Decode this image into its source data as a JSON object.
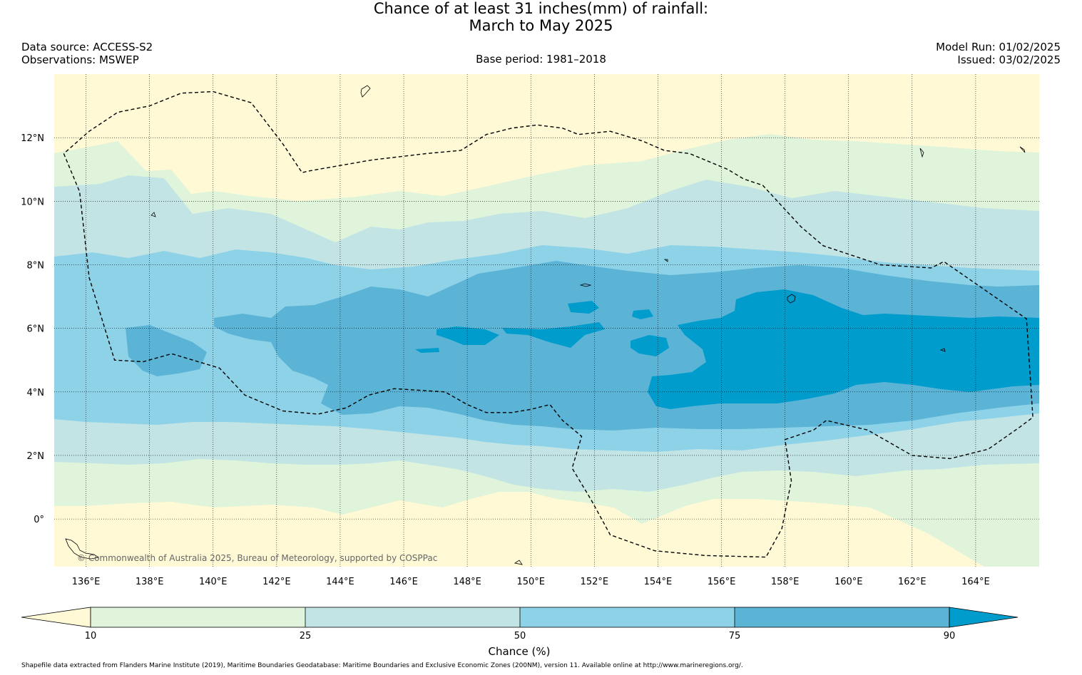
{
  "title": {
    "line1": "Chance of at least 31 inches(mm) of rainfall:",
    "line2": "March to May 2025"
  },
  "meta": {
    "data_source": "Data source: ACCESS-S2",
    "observations": "Observations: MSWEP",
    "base_period": "Base period: 1981–2018",
    "model_run": "Model Run: 01/02/2025",
    "issued": "Issued: 03/02/2025"
  },
  "map": {
    "lon_range": [
      135,
      166
    ],
    "lat_range": [
      -1.5,
      14
    ],
    "lon_ticks": [
      {
        "value": 136,
        "label": "136°E"
      },
      {
        "value": 138,
        "label": "138°E"
      },
      {
        "value": 140,
        "label": "140°E"
      },
      {
        "value": 142,
        "label": "142°E"
      },
      {
        "value": 144,
        "label": "144°E"
      },
      {
        "value": 146,
        "label": "146°E"
      },
      {
        "value": 148,
        "label": "148°E"
      },
      {
        "value": 150,
        "label": "150°E"
      },
      {
        "value": 152,
        "label": "152°E"
      },
      {
        "value": 154,
        "label": "154°E"
      },
      {
        "value": 156,
        "label": "156°E"
      },
      {
        "value": 158,
        "label": "158°E"
      },
      {
        "value": 160,
        "label": "160°E"
      },
      {
        "value": 162,
        "label": "162°E"
      },
      {
        "value": 164,
        "label": "164°E"
      }
    ],
    "lat_ticks": [
      {
        "value": 12,
        "label": "12°N"
      },
      {
        "value": 10,
        "label": "10°N"
      },
      {
        "value": 8,
        "label": "8°N"
      },
      {
        "value": 6,
        "label": "6°N"
      },
      {
        "value": 4,
        "label": "4°N"
      },
      {
        "value": 2,
        "label": "2°N"
      },
      {
        "value": 0,
        "label": "0°"
      }
    ],
    "watermark": "© Commonwealth of Australia 2025, Bureau of Meteorology, supported by COSPPac",
    "colors": {
      "lt10": "#fff9d6",
      "c10_25": "#dff4da",
      "c25_50": "#c2e4e4",
      "c50_75": "#8ed2e8",
      "c75_90": "#5bb4d6",
      "gt90": "#009ccc"
    },
    "boundary_lonlat": [
      [
        135.3,
        11.5
      ],
      [
        135.8,
        10.3
      ],
      [
        136.1,
        7.6
      ],
      [
        136.9,
        5.0
      ],
      [
        137.8,
        4.95
      ],
      [
        138.7,
        5.2
      ],
      [
        140.2,
        4.75
      ],
      [
        141.0,
        3.9
      ],
      [
        142.2,
        3.4
      ],
      [
        143.3,
        3.3
      ],
      [
        144.2,
        3.5
      ],
      [
        144.9,
        3.9
      ],
      [
        145.7,
        4.1
      ],
      [
        147.3,
        4.0
      ],
      [
        148.0,
        3.6
      ],
      [
        148.6,
        3.35
      ],
      [
        149.4,
        3.35
      ],
      [
        150.0,
        3.45
      ],
      [
        150.6,
        3.6
      ],
      [
        151.0,
        3.1
      ],
      [
        151.6,
        2.6
      ],
      [
        151.3,
        1.6
      ],
      [
        151.9,
        0.6
      ],
      [
        152.5,
        -0.5
      ],
      [
        153.9,
        -1.0
      ],
      [
        155.5,
        -1.15
      ],
      [
        157.4,
        -1.2
      ],
      [
        157.9,
        -0.3
      ],
      [
        158.2,
        1.2
      ],
      [
        158.0,
        2.5
      ],
      [
        158.9,
        2.8
      ],
      [
        159.3,
        3.1
      ],
      [
        160.6,
        2.8
      ],
      [
        161.3,
        2.4
      ],
      [
        162.0,
        2.0
      ],
      [
        163.2,
        1.9
      ],
      [
        164.4,
        2.2
      ],
      [
        165.4,
        2.9
      ],
      [
        165.8,
        3.2
      ],
      [
        165.6,
        6.3
      ],
      [
        163.0,
        8.1
      ],
      [
        162.6,
        7.9
      ],
      [
        161.0,
        8.0
      ],
      [
        159.2,
        8.6
      ],
      [
        158.5,
        9.2
      ],
      [
        157.3,
        10.5
      ],
      [
        156.7,
        10.7
      ],
      [
        156.2,
        11.0
      ],
      [
        155.0,
        11.5
      ],
      [
        154.2,
        11.6
      ],
      [
        153.5,
        11.9
      ],
      [
        152.5,
        12.2
      ],
      [
        151.5,
        12.1
      ],
      [
        151.0,
        12.3
      ],
      [
        150.2,
        12.4
      ],
      [
        149.4,
        12.3
      ],
      [
        148.6,
        12.1
      ],
      [
        147.8,
        11.6
      ],
      [
        146.7,
        11.5
      ],
      [
        145.0,
        11.3
      ],
      [
        143.0,
        10.95
      ],
      [
        142.8,
        10.9
      ],
      [
        142.2,
        11.8
      ],
      [
        141.2,
        13.1
      ],
      [
        140.0,
        13.45
      ],
      [
        139.0,
        13.4
      ],
      [
        138.0,
        13.0
      ],
      [
        137.0,
        12.8
      ],
      [
        136.1,
        12.2
      ],
      [
        135.3,
        11.5
      ]
    ]
  },
  "colorbar": {
    "label": "Chance (%)",
    "ticks": [
      {
        "value": 10,
        "label": "10"
      },
      {
        "value": 25,
        "label": "25"
      },
      {
        "value": 50,
        "label": "50"
      },
      {
        "value": 75,
        "label": "75"
      },
      {
        "value": 90,
        "label": "90"
      }
    ]
  },
  "credit": "Shapefile data extracted from Flanders Marine Institute (2019), Maritime Boundaries Geodatabase: Maritime Boundaries and Exclusive Economic Zones (200NM), version 11. Available online at http://www.marineregions.org/."
}
